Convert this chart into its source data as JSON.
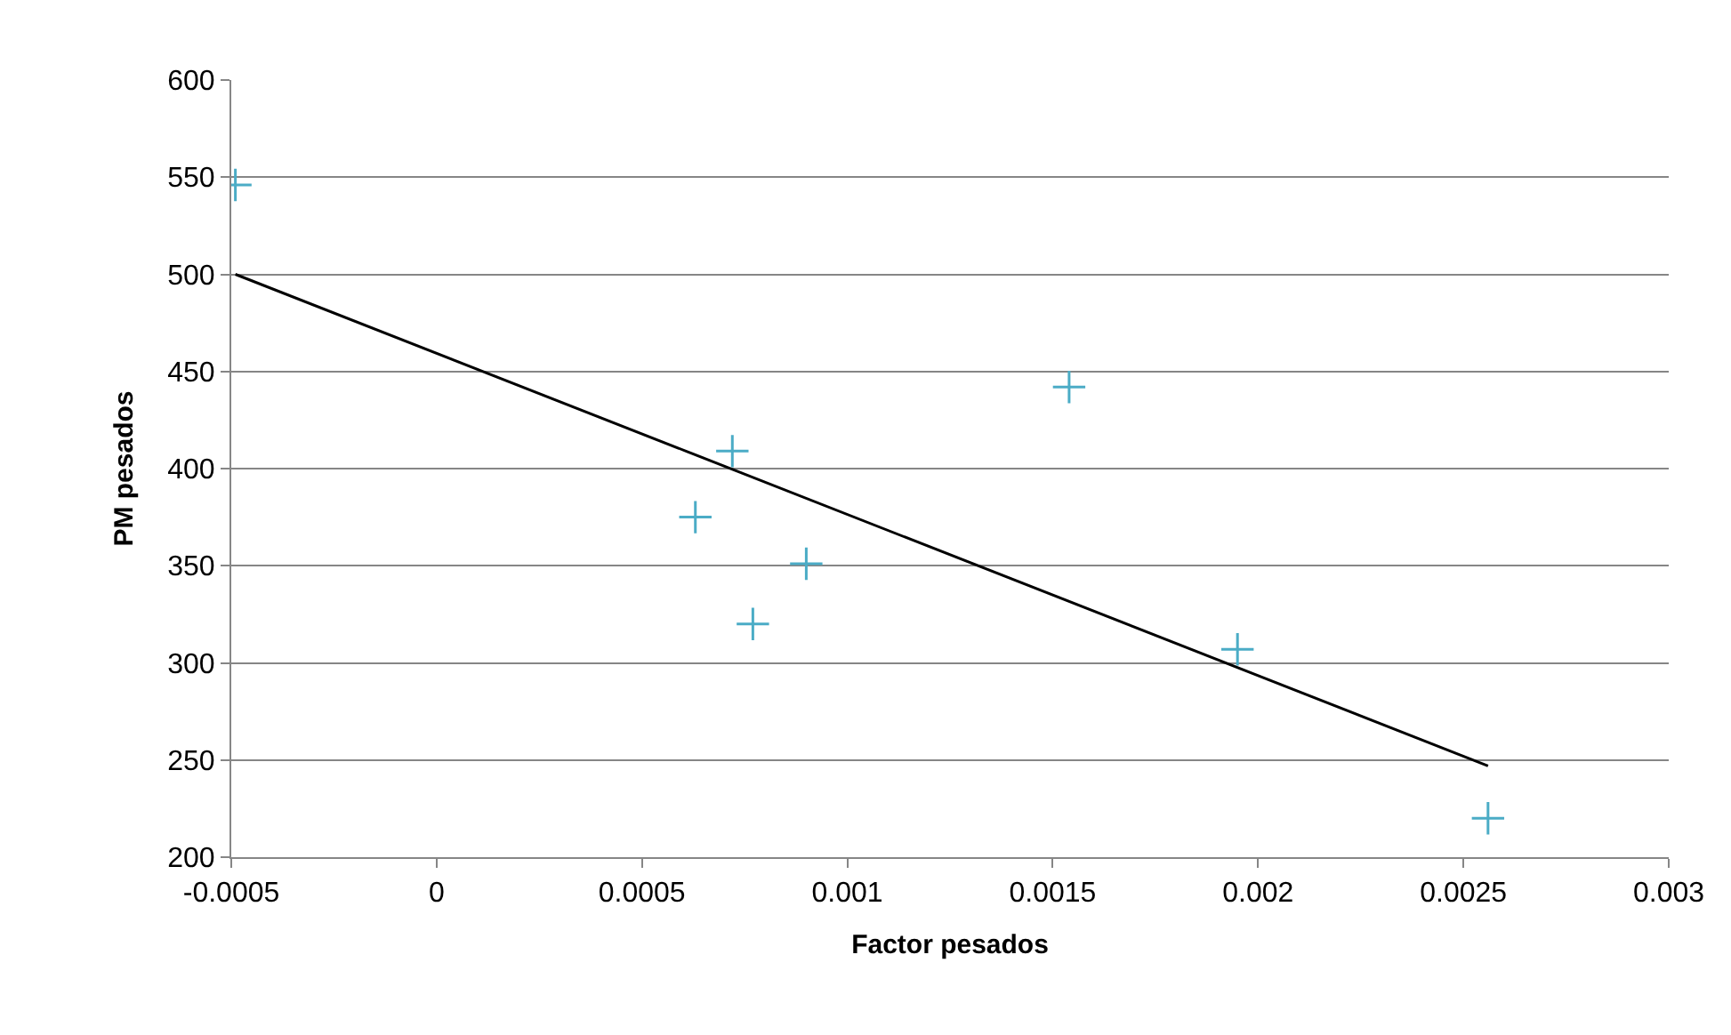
{
  "chart_data": {
    "type": "scatter",
    "xlabel": "Factor pesados",
    "ylabel": "PM pesados",
    "xlim": [
      -0.0005,
      0.003
    ],
    "xticks": [
      -0.0005,
      0,
      0.0005,
      0.001,
      0.0015,
      0.002,
      0.0025,
      0.003
    ],
    "ylim": [
      200,
      600
    ],
    "yticks": [
      200,
      250,
      300,
      350,
      400,
      450,
      500,
      550,
      600
    ],
    "grid": "y",
    "legend": false,
    "marker": "cross",
    "series": [
      {
        "color": "#4bacc6",
        "x": [
          -0.00049,
          0.00063,
          0.00072,
          0.00077,
          0.0009,
          0.00154,
          0.00195,
          0.00256
        ],
        "values": [
          546,
          375,
          409,
          320,
          351,
          442,
          307,
          220
        ]
      },
      {
        "type": "line",
        "color": "#000000",
        "marker": "none",
        "line_style": "solid",
        "x": [
          -0.00049,
          0.00256
        ],
        "values": [
          500,
          247
        ]
      }
    ]
  }
}
